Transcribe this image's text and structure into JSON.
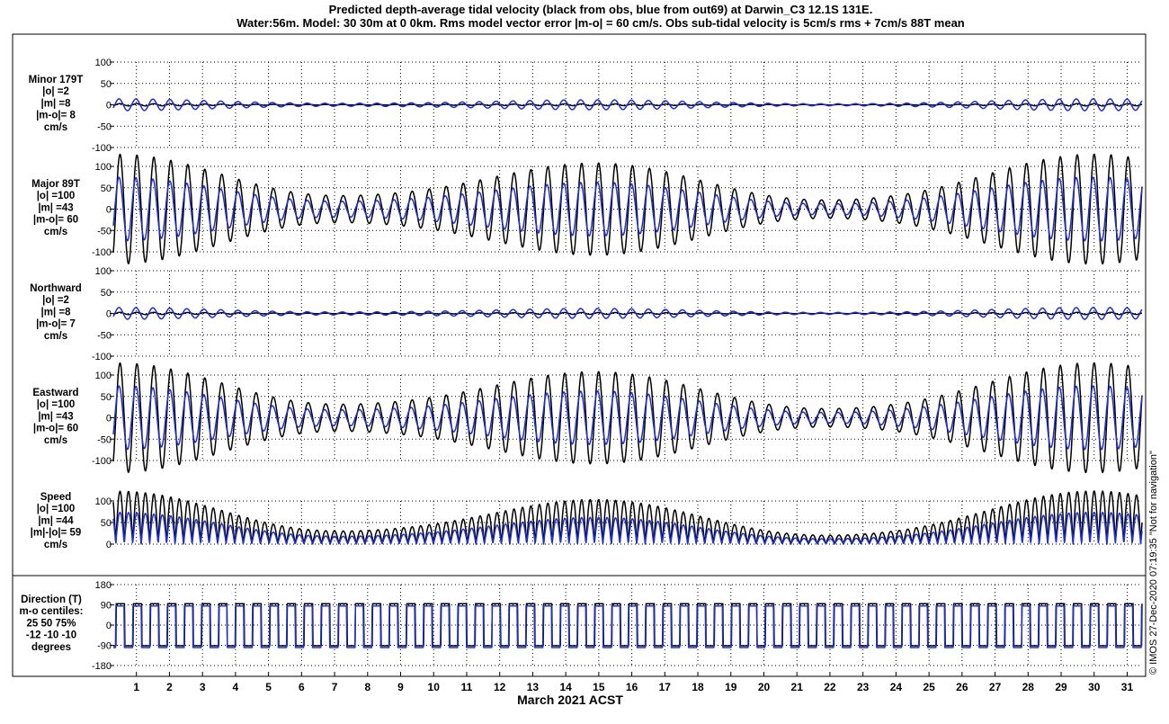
{
  "chart_data": {
    "type": "line",
    "title_line1": "Predicted depth-average tidal velocity (black from obs, blue from out69) at Darwin_C3 12.1S 131E.",
    "title_line2": "Water:56m. Model: 30 30m at 0 0km. Rms model vector error |m-o| = 60 cm/s. Obs sub-tidal velocity is 5cm/s rms + 7cm/s 88T mean",
    "xlabel": "March 2021 ACST",
    "xlim": [
      0.3,
      31.45
    ],
    "x_ticks": [
      1,
      2,
      3,
      4,
      5,
      6,
      7,
      8,
      9,
      10,
      11,
      12,
      13,
      14,
      15,
      16,
      17,
      18,
      19,
      20,
      21,
      22,
      23,
      24,
      25,
      26,
      27,
      28,
      29,
      30,
      31
    ],
    "x_tick_labels": [
      "1",
      "2",
      "3",
      "4",
      "5",
      "6",
      "7",
      "8",
      "9",
      "10",
      "11",
      "12",
      "13",
      "14",
      "15",
      "16",
      "17",
      "18",
      "19",
      "20",
      "21",
      "22",
      "23",
      "24",
      "25",
      "26",
      "27",
      "28",
      "29",
      "30",
      "31"
    ],
    "side_text": "© IMOS 27-Dec-2020 07:19:35  \"Not for navigation\"",
    "series": [
      {
        "name": "obs",
        "color": "#000000"
      },
      {
        "name": "out69",
        "color": "#1f2fd0"
      }
    ],
    "panels": [
      {
        "id": "minor",
        "label_lines": [
          "Minor 179T",
          "|o| =2",
          "|m| =8",
          "|m-o|= 8",
          "cm/s"
        ],
        "ylim": [
          -100,
          100
        ],
        "y_ticks": [
          -100,
          -50,
          0,
          50,
          100
        ],
        "y_tick_labels": [
          "-100",
          "-50",
          "0",
          "50",
          "100"
        ],
        "obs_amplitude": 2,
        "model_amplitude": 8
      },
      {
        "id": "major",
        "label_lines": [
          "Major 89T",
          "|o| =100",
          "|m| =43",
          "|m-o|= 60",
          "cm/s"
        ],
        "ylim": [
          -100,
          100
        ],
        "y_ticks": [
          -100,
          -50,
          0,
          50,
          100
        ],
        "y_tick_labels": [
          "-100",
          "-50",
          "0",
          "50",
          "100"
        ],
        "obs_amplitude": 100,
        "model_amplitude": 43
      },
      {
        "id": "north",
        "label_lines": [
          "Northward",
          "|o| =2",
          "|m| =8",
          "|m-o|= 7",
          "cm/s"
        ],
        "ylim": [
          -100,
          100
        ],
        "y_ticks": [
          -100,
          -50,
          0,
          50,
          100
        ],
        "y_tick_labels": [
          "-100",
          "-50",
          "0",
          "50",
          "100"
        ],
        "obs_amplitude": 2,
        "model_amplitude": 8
      },
      {
        "id": "east",
        "label_lines": [
          "Eastward",
          "|o| =100",
          "|m| =43",
          "|m-o|= 60",
          "cm/s"
        ],
        "ylim": [
          -100,
          100
        ],
        "y_ticks": [
          -100,
          -50,
          0,
          50,
          100
        ],
        "y_tick_labels": [
          "-100",
          "-50",
          "0",
          "50",
          "100"
        ],
        "obs_amplitude": 100,
        "model_amplitude": 43
      },
      {
        "id": "speed",
        "label_lines": [
          "Speed",
          "|o| =100",
          "|m| =44",
          "|m|-|o|= 59",
          "cm/s"
        ],
        "ylim": [
          0,
          100
        ],
        "y_ticks": [
          0,
          50,
          100
        ],
        "y_tick_labels": [
          "0",
          "50",
          "100"
        ],
        "obs_amplitude": 100,
        "model_amplitude": 44
      },
      {
        "id": "direction",
        "label_lines": [
          "Direction (T)",
          "m-o centiles:",
          "25  50  75%",
          "-12 -10 -10",
          "degrees"
        ],
        "ylim": [
          -180,
          180
        ],
        "y_ticks": [
          -180,
          -90,
          0,
          90,
          180
        ],
        "y_tick_labels": [
          "-180",
          "-90",
          "0",
          "90",
          "180"
        ],
        "centiles_pct": [
          25,
          50,
          75
        ],
        "centiles_deg": [
          -12,
          -10,
          -10
        ]
      }
    ]
  }
}
